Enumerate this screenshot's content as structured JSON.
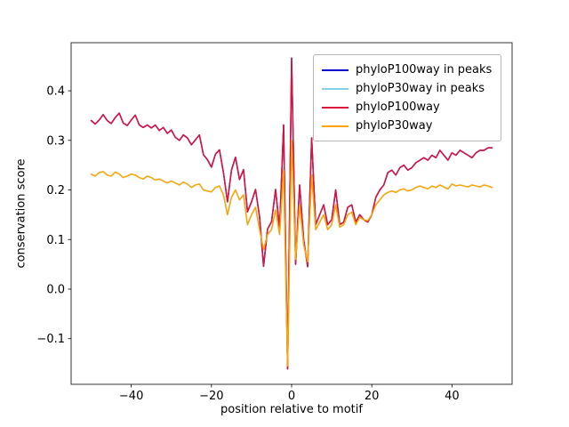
{
  "chart_data": {
    "type": "line",
    "title": "",
    "xlabel": "position relative to motif",
    "ylabel": "conservation score",
    "xlim": [
      -55,
      55
    ],
    "ylim": [
      -0.192,
      0.497
    ],
    "grid": false,
    "legend_position": "upper right",
    "x": {
      "start": -50,
      "end": 50,
      "step": 1
    },
    "xticks": [
      {
        "v": -40,
        "label": "−40"
      },
      {
        "v": -20,
        "label": "−20"
      },
      {
        "v": 0,
        "label": "0"
      },
      {
        "v": 20,
        "label": "20"
      },
      {
        "v": 40,
        "label": "40"
      }
    ],
    "yticks": [
      {
        "v": -0.1,
        "label": "−0.1"
      },
      {
        "v": 0.0,
        "label": "0.0"
      },
      {
        "v": 0.1,
        "label": "0.1"
      },
      {
        "v": 0.2,
        "label": "0.2"
      },
      {
        "v": 0.3,
        "label": "0.3"
      },
      {
        "v": 0.4,
        "label": "0.4"
      }
    ],
    "values": {
      "phyloP100way": [
        0.34,
        0.333,
        0.341,
        0.352,
        0.34,
        0.334,
        0.346,
        0.355,
        0.335,
        0.33,
        0.341,
        0.351,
        0.331,
        0.326,
        0.331,
        0.325,
        0.331,
        0.32,
        0.326,
        0.314,
        0.321,
        0.306,
        0.3,
        0.311,
        0.305,
        0.291,
        0.301,
        0.311,
        0.271,
        0.261,
        0.246,
        0.272,
        0.281,
        0.235,
        0.176,
        0.24,
        0.266,
        0.221,
        0.241,
        0.156,
        0.176,
        0.201,
        0.146,
        0.046,
        0.121,
        0.136,
        0.201,
        0.121,
        0.331,
        -0.161,
        0.466,
        0.05,
        0.21,
        0.1,
        0.045,
        0.305,
        0.13,
        0.15,
        0.17,
        0.13,
        0.14,
        0.2,
        0.13,
        0.135,
        0.165,
        0.17,
        0.135,
        0.15,
        0.14,
        0.135,
        0.15,
        0.185,
        0.2,
        0.21,
        0.235,
        0.24,
        0.23,
        0.245,
        0.25,
        0.24,
        0.245,
        0.255,
        0.26,
        0.265,
        0.26,
        0.27,
        0.265,
        0.28,
        0.27,
        0.26,
        0.275,
        0.27,
        0.28,
        0.275,
        0.27,
        0.265,
        0.275,
        0.28,
        0.28,
        0.285,
        0.285
      ],
      "phyloP30way": [
        0.232,
        0.228,
        0.235,
        0.237,
        0.23,
        0.228,
        0.236,
        0.232,
        0.225,
        0.228,
        0.232,
        0.23,
        0.225,
        0.222,
        0.228,
        0.225,
        0.22,
        0.222,
        0.218,
        0.214,
        0.218,
        0.214,
        0.21,
        0.216,
        0.212,
        0.205,
        0.21,
        0.212,
        0.2,
        0.198,
        0.196,
        0.205,
        0.208,
        0.19,
        0.15,
        0.185,
        0.2,
        0.18,
        0.19,
        0.13,
        0.15,
        0.165,
        0.12,
        0.08,
        0.11,
        0.12,
        0.16,
        0.11,
        0.24,
        -0.155,
        0.3,
        0.06,
        0.17,
        0.09,
        0.055,
        0.23,
        0.12,
        0.135,
        0.15,
        0.12,
        0.13,
        0.17,
        0.125,
        0.13,
        0.15,
        0.155,
        0.13,
        0.145,
        0.14,
        0.138,
        0.15,
        0.17,
        0.18,
        0.19,
        0.195,
        0.198,
        0.195,
        0.2,
        0.202,
        0.198,
        0.2,
        0.205,
        0.208,
        0.205,
        0.202,
        0.208,
        0.205,
        0.21,
        0.206,
        0.202,
        0.212,
        0.208,
        0.21,
        0.208,
        0.206,
        0.21,
        0.208,
        0.206,
        0.21,
        0.208,
        0.205
      ]
    },
    "series": [
      {
        "name": "phyloP100way in peaks",
        "color": "#0000cd",
        "values_ref": "phyloP100way"
      },
      {
        "name": "phyloP30way in peaks",
        "color": "#87ceeb",
        "values_ref": "phyloP30way"
      },
      {
        "name": "phyloP100way",
        "color": "#dc143c",
        "values_ref": "phyloP100way"
      },
      {
        "name": "phyloP30way",
        "color": "#ffa500",
        "values_ref": "phyloP30way"
      }
    ]
  }
}
